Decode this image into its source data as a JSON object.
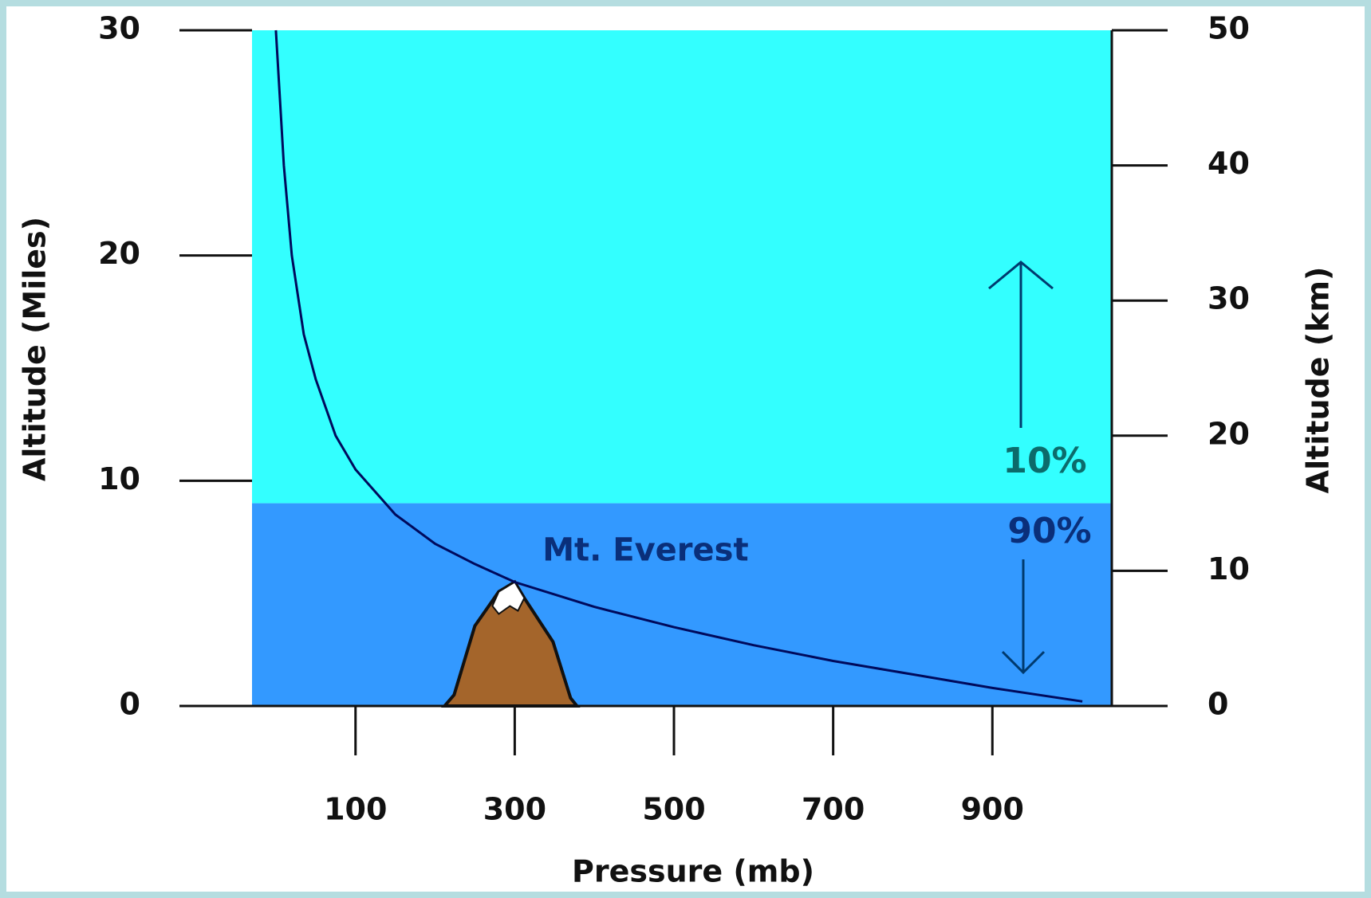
{
  "chart_data": {
    "type": "line",
    "x_label": "Pressure (mb)",
    "y_label": "Altitude (Miles)",
    "y2_label": "Altitude (km)",
    "x": [
      0,
      5,
      10,
      20,
      35,
      50,
      75,
      100,
      150,
      200,
      250,
      300,
      400,
      500,
      600,
      700,
      800,
      900,
      1013
    ],
    "values": [
      30,
      27,
      24,
      20,
      16.5,
      14.5,
      12,
      10.5,
      8.5,
      7.2,
      6.3,
      5.5,
      4.4,
      3.5,
      2.7,
      2,
      1.4,
      0.8,
      0.2
    ],
    "color": "#000a5c",
    "xlim": [
      -30,
      1050
    ],
    "xticks": [
      100,
      300,
      500,
      700,
      900
    ],
    "ylim": [
      0,
      30
    ],
    "yticks": [
      0,
      10,
      20,
      30
    ],
    "y2lim": [
      0,
      50
    ],
    "y2ticks": [
      0,
      10,
      20,
      30,
      40,
      50
    ],
    "regions": [
      {
        "label": "10%",
        "from": 9,
        "to": 30,
        "color": "#33ffff"
      },
      {
        "label": "90%",
        "from": 0,
        "to": 9,
        "color": "#3399ff"
      }
    ],
    "annotation": {
      "text": "Mt. Everest",
      "x": 300,
      "y": 5.5
    }
  }
}
